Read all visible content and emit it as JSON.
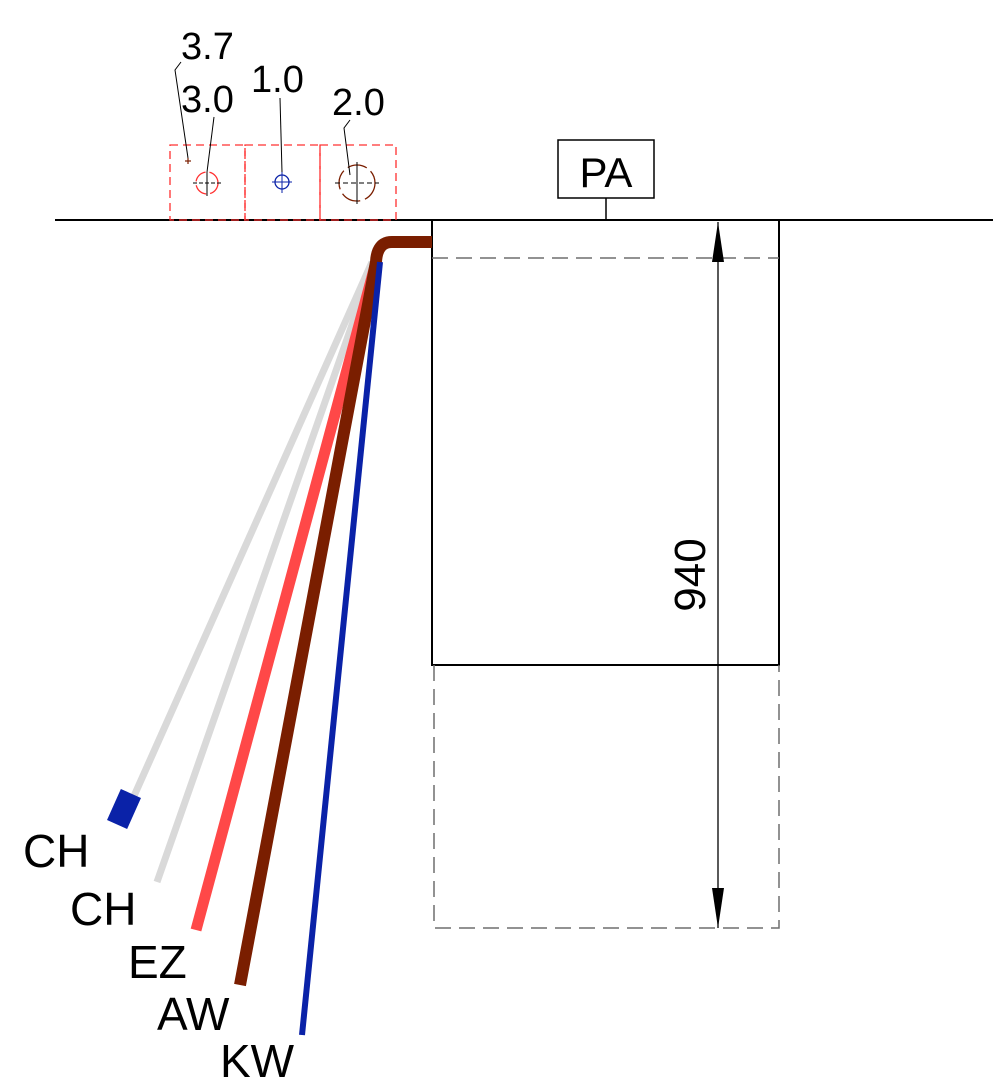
{
  "diagram": {
    "colors": {
      "line": "#000000",
      "dashed_outline": "#6e6e6e",
      "sleeve_outline": "#ff3030",
      "blue": "#0a22a8",
      "grey": "#d9d9d9",
      "red": "#ff4848",
      "brown": "#7a1e00"
    },
    "symbols": {
      "labels_left": [
        "3.7",
        "3.0"
      ],
      "label_mid": "1.0",
      "label_right": "2.0"
    },
    "reference_label": "PA",
    "dimension": {
      "value": "940"
    },
    "pipes": [
      {
        "label": "CH",
        "color": "#0a22a8"
      },
      {
        "label": "CH",
        "color": "#d9d9d9"
      },
      {
        "label": "EZ",
        "color": "#ff4848"
      },
      {
        "label": "AW",
        "color": "#7a1e00"
      },
      {
        "label": "KW",
        "color": "#0a22a8"
      }
    ]
  }
}
